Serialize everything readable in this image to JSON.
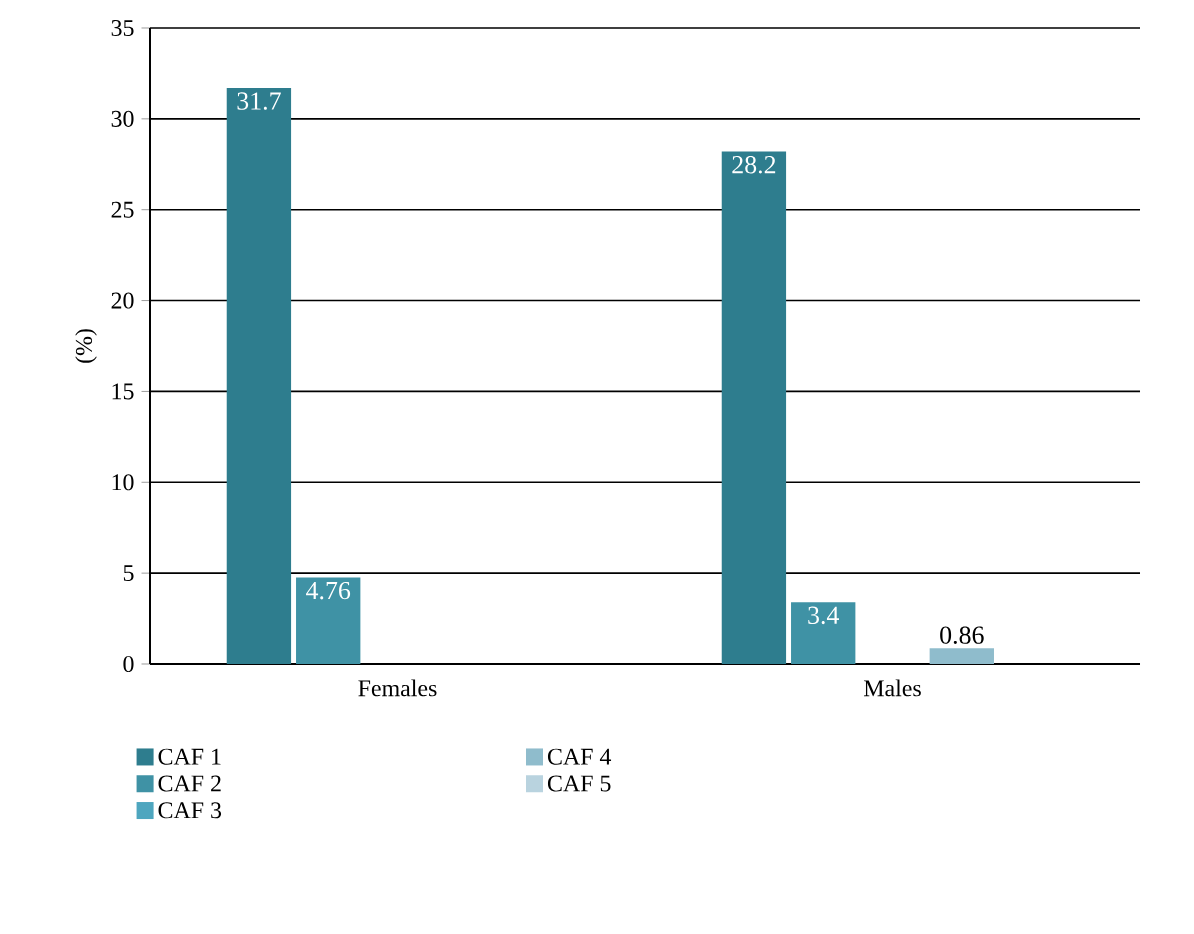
{
  "chart_data": {
    "type": "bar",
    "ylabel": "(%)",
    "categories": [
      "Females",
      "Males"
    ],
    "series": [
      {
        "name": "CAF 1",
        "color": "#2e7d8e",
        "values": [
          31.7,
          28.2
        ],
        "value_labels": [
          "31.7",
          "28.2"
        ]
      },
      {
        "name": "CAF 2",
        "color": "#3f92a5",
        "values": [
          4.76,
          3.4
        ],
        "value_labels": [
          "4.76",
          "3.4"
        ]
      },
      {
        "name": "CAF 3",
        "color": "#4ea6bf",
        "values": [
          0,
          0
        ],
        "value_labels": [
          null,
          null
        ]
      },
      {
        "name": "CAF 4",
        "color": "#8fbccc",
        "values": [
          0,
          0.86
        ],
        "value_labels": [
          null,
          "0.86"
        ]
      },
      {
        "name": "CAF 5",
        "color": "#b9d3df",
        "values": [
          0,
          0
        ],
        "value_labels": [
          null,
          null
        ]
      }
    ],
    "ylim": [
      0,
      35
    ],
    "yticks": [
      0,
      5,
      10,
      15,
      20,
      25,
      30,
      35
    ],
    "grid": "y",
    "legend": "bottom"
  }
}
